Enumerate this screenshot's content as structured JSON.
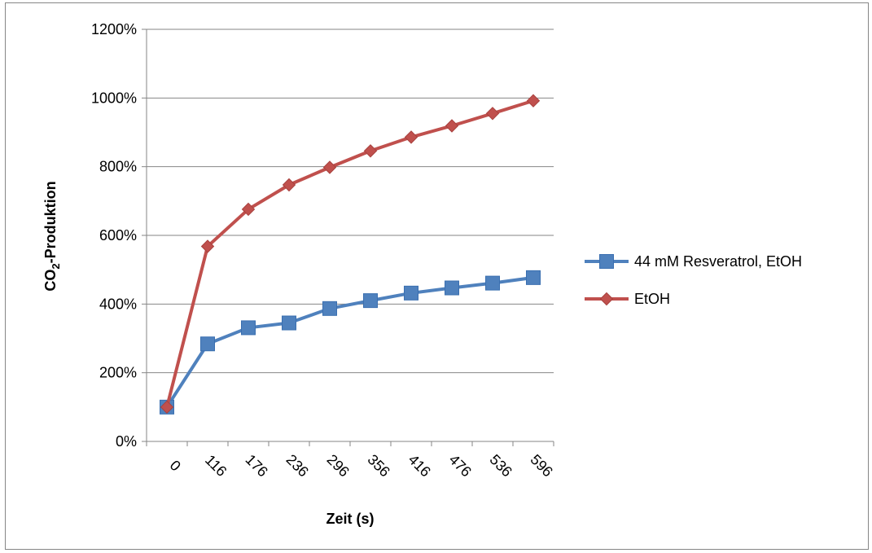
{
  "chart_data": {
    "type": "line",
    "title": "",
    "xlabel": "Zeit (s)",
    "ylabel_main": "CO",
    "ylabel_sub": "2",
    "ylabel_rest": "-Produktion",
    "categories": [
      "0",
      "116",
      "176",
      "236",
      "296",
      "356",
      "416",
      "476",
      "536",
      "596"
    ],
    "ylim": [
      0,
      12
    ],
    "yticks": [
      "0%",
      "200%",
      "400%",
      "600%",
      "800%",
      "1000%",
      "1200%"
    ],
    "grid": "horizontal",
    "legend_position": "right",
    "series": [
      {
        "name": "44 mM Resveratrol, EtOH",
        "color": "#4F81BD",
        "marker": "square",
        "values": [
          1.0,
          2.84,
          3.31,
          3.45,
          3.87,
          4.1,
          4.32,
          4.47,
          4.61,
          4.77
        ]
      },
      {
        "name": "EtOH",
        "color": "#C0504D",
        "marker": "diamond",
        "values": [
          1.0,
          5.68,
          6.76,
          7.47,
          7.98,
          8.46,
          8.86,
          9.19,
          9.55,
          9.92
        ]
      }
    ]
  }
}
